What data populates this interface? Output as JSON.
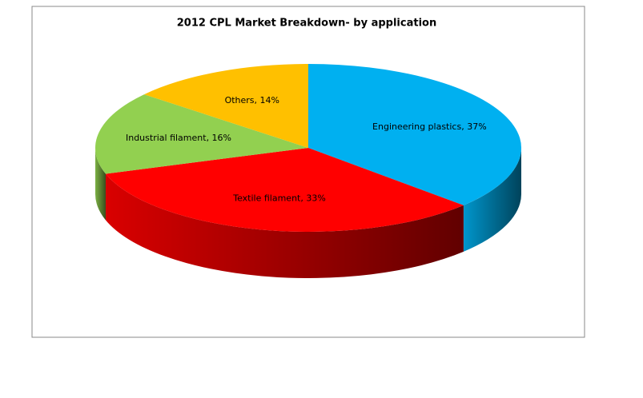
{
  "chart_data": {
    "type": "pie3d",
    "title": "2012 CPL Market Breakdown- by application",
    "values": [
      37,
      33,
      16,
      14
    ],
    "value_labels": [
      "Engineering plastics, 37%",
      "Textile filament, 33%",
      "Industrial filament, 16%",
      "Others, 14%"
    ],
    "colors": [
      "#00b0f0",
      "#ff0000",
      "#92d050",
      "#ffc000"
    ]
  }
}
